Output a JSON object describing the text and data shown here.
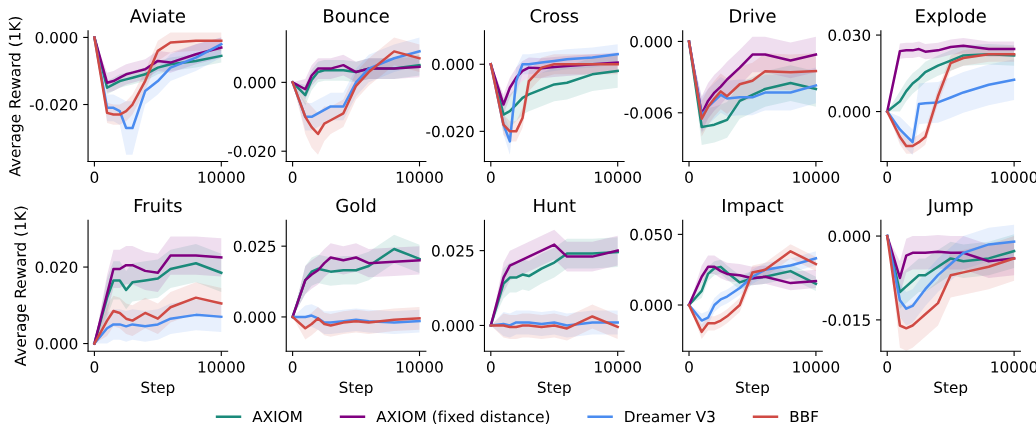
{
  "chart_data": [
    {
      "type": "line",
      "title": "Aviate",
      "ylabel": "Average Reward (1K)",
      "legend": "bottom",
      "xlim": [
        -500,
        10500
      ],
      "xticks": [
        0,
        10000
      ],
      "ylim": [
        -0.037,
        0.002
      ],
      "yticks": [
        {
          "value": 0,
          "label": "0.000"
        },
        {
          "value": -0.02,
          "label": "-0.020"
        }
      ],
      "x": [
        0,
        1000,
        1500,
        2000,
        2500,
        3000,
        4000,
        5000,
        6000,
        8000,
        10000
      ],
      "series": [
        {
          "name": "AXIOM",
          "color": "#1a8a7a",
          "values": [
            0,
            -0.015,
            -0.014,
            -0.013,
            -0.0125,
            -0.012,
            -0.011,
            -0.009,
            -0.008,
            -0.007,
            -0.0055
          ],
          "lower": [
            0,
            -0.017,
            -0.016,
            -0.015,
            -0.0145,
            -0.014,
            -0.013,
            -0.011,
            -0.01,
            -0.009,
            -0.0075
          ],
          "upper": [
            0,
            -0.013,
            -0.012,
            -0.011,
            -0.0105,
            -0.01,
            -0.009,
            -0.007,
            -0.006,
            -0.005,
            -0.0035
          ]
        },
        {
          "name": "AXIOM (fixed distance)",
          "color": "#800080",
          "values": [
            0,
            -0.0135,
            -0.013,
            -0.012,
            -0.011,
            -0.0105,
            -0.0095,
            -0.007,
            -0.0075,
            -0.005,
            -0.003
          ],
          "lower": [
            0,
            -0.0165,
            -0.016,
            -0.015,
            -0.014,
            -0.0135,
            -0.0125,
            -0.01,
            -0.0105,
            -0.008,
            -0.006
          ],
          "upper": [
            0,
            -0.0105,
            -0.01,
            -0.009,
            -0.008,
            -0.0075,
            -0.0065,
            -0.004,
            -0.0045,
            -0.002,
            0.0
          ]
        },
        {
          "name": "Dreamer V3",
          "color": "#4a8cf0",
          "values": [
            0,
            -0.021,
            -0.021,
            -0.022,
            -0.027,
            -0.027,
            -0.016,
            -0.013,
            -0.009,
            -0.006,
            -0.002
          ],
          "lower": [
            0,
            -0.025,
            -0.025,
            -0.026,
            -0.035,
            -0.035,
            -0.02,
            -0.017,
            -0.013,
            -0.01,
            -0.006
          ],
          "upper": [
            0,
            -0.017,
            -0.017,
            -0.018,
            -0.019,
            -0.019,
            -0.012,
            -0.009,
            -0.005,
            -0.002,
            0.0
          ]
        },
        {
          "name": "BBF",
          "color": "#d04a44",
          "values": [
            0,
            -0.0225,
            -0.023,
            -0.023,
            -0.022,
            -0.02,
            -0.013,
            -0.004,
            -0.0015,
            -0.001,
            -0.001
          ],
          "lower": [
            0,
            -0.0255,
            -0.026,
            -0.026,
            -0.025,
            -0.023,
            -0.016,
            -0.007,
            -0.0045,
            -0.004,
            -0.004
          ],
          "upper": [
            0,
            -0.0195,
            -0.02,
            -0.02,
            -0.019,
            -0.017,
            -0.01,
            -0.001,
            0.0015,
            0.0015,
            0.0015
          ]
        }
      ]
    },
    {
      "type": "line",
      "title": "Bounce",
      "xlim": [
        -500,
        10500
      ],
      "xticks": [
        0,
        10000
      ],
      "ylim": [
        -0.023,
        0.015
      ],
      "yticks": [
        {
          "value": 0,
          "label": "0.000"
        },
        {
          "value": -0.02,
          "label": "-0.020"
        }
      ],
      "x": [
        0,
        1000,
        1500,
        2000,
        2500,
        3000,
        4000,
        5000,
        6000,
        8000,
        10000
      ],
      "series": [
        {
          "name": "AXIOM",
          "color": "#1a8a7a",
          "values": [
            0,
            -0.0037,
            0.0007,
            0.003,
            0.0035,
            0.0035,
            0.0035,
            0.003,
            0.004,
            0.004,
            0.005
          ],
          "lower": [
            0,
            -0.0067,
            -0.0023,
            0.0,
            0.0005,
            0.0005,
            0.0005,
            0.0,
            0.001,
            0.001,
            0.002
          ],
          "upper": [
            0,
            -0.0007,
            0.0037,
            0.006,
            0.0065,
            0.0065,
            0.0065,
            0.006,
            0.007,
            0.007,
            0.008
          ]
        },
        {
          "name": "AXIOM (fixed distance)",
          "color": "#800080",
          "values": [
            0,
            -0.002,
            0.002,
            0.004,
            0.004,
            0.004,
            0.005,
            0.003,
            0.004,
            0.004,
            0.0045
          ],
          "lower": [
            0,
            -0.005,
            -0.001,
            0.001,
            0.001,
            0.001,
            0.002,
            0.0,
            0.001,
            0.001,
            0.0015
          ],
          "upper": [
            0,
            0.001,
            0.005,
            0.007,
            0.007,
            0.007,
            0.008,
            0.006,
            0.007,
            0.007,
            0.0075
          ]
        },
        {
          "name": "Dreamer V3",
          "color": "#4a8cf0",
          "values": [
            0,
            -0.01,
            -0.01,
            -0.009,
            -0.008,
            -0.007,
            -0.007,
            0.0,
            0.004,
            0.007,
            0.009
          ],
          "lower": [
            0,
            -0.014,
            -0.014,
            -0.013,
            -0.012,
            -0.011,
            -0.011,
            -0.004,
            0.0,
            0.003,
            0.005
          ],
          "upper": [
            0,
            -0.006,
            -0.006,
            -0.005,
            -0.004,
            -0.003,
            -0.003,
            0.004,
            0.008,
            0.011,
            0.013
          ]
        },
        {
          "name": "BBF",
          "color": "#d04a44",
          "values": [
            0,
            -0.01,
            -0.013,
            -0.015,
            -0.012,
            -0.011,
            -0.009,
            -0.001,
            0.003,
            0.009,
            0.007
          ],
          "lower": [
            0,
            -0.015,
            -0.019,
            -0.021,
            -0.017,
            -0.015,
            -0.013,
            -0.005,
            -0.001,
            0.005,
            0.003
          ],
          "upper": [
            0,
            -0.005,
            -0.007,
            -0.009,
            -0.007,
            -0.007,
            -0.005,
            0.003,
            0.007,
            0.013,
            0.011
          ]
        }
      ]
    },
    {
      "type": "line",
      "title": "Cross",
      "xlim": [
        -500,
        10500
      ],
      "xticks": [
        0,
        10000
      ],
      "ylim": [
        -0.029,
        0.01
      ],
      "yticks": [
        {
          "value": 0,
          "label": "0.000"
        },
        {
          "value": -0.02,
          "label": "-0.020"
        }
      ],
      "x": [
        0,
        1000,
        1500,
        2000,
        2500,
        3000,
        4000,
        5000,
        6000,
        8000,
        10000
      ],
      "series": [
        {
          "name": "AXIOM",
          "color": "#1a8a7a",
          "values": [
            0,
            -0.015,
            -0.014,
            -0.012,
            -0.01,
            -0.009,
            -0.0075,
            -0.006,
            -0.0055,
            -0.003,
            -0.002
          ],
          "lower": [
            0,
            -0.02,
            -0.019,
            -0.017,
            -0.015,
            -0.014,
            -0.0125,
            -0.011,
            -0.0105,
            -0.008,
            -0.007
          ],
          "upper": [
            0,
            -0.01,
            -0.009,
            -0.007,
            -0.005,
            -0.004,
            -0.0025,
            -0.001,
            -0.0005,
            0.002,
            0.003
          ]
        },
        {
          "name": "AXIOM (fixed distance)",
          "color": "#800080",
          "values": [
            0,
            -0.012,
            -0.007,
            -0.004,
            -0.002,
            -0.001,
            -0.0012,
            -0.0008,
            -0.0005,
            0.0,
            0.0005
          ],
          "lower": [
            0,
            -0.015,
            -0.01,
            -0.007,
            -0.005,
            -0.004,
            -0.0042,
            -0.0038,
            -0.0035,
            -0.003,
            -0.0025
          ],
          "upper": [
            0,
            -0.009,
            -0.004,
            -0.001,
            0.001,
            0.002,
            0.0018,
            0.0022,
            0.0025,
            0.003,
            0.0035
          ]
        },
        {
          "name": "Dreamer V3",
          "color": "#4a8cf0",
          "values": [
            0,
            -0.018,
            -0.023,
            -0.005,
            0.0,
            0.0,
            0.0005,
            0.001,
            0.0015,
            0.002,
            0.003
          ],
          "lower": [
            0,
            -0.021,
            -0.027,
            -0.009,
            -0.003,
            -0.003,
            -0.0025,
            -0.002,
            -0.0015,
            -0.001,
            0.0
          ],
          "upper": [
            0,
            -0.015,
            -0.019,
            -0.001,
            0.003,
            0.003,
            0.0035,
            0.004,
            0.0045,
            0.005,
            0.006
          ]
        },
        {
          "name": "BBF",
          "color": "#d04a44",
          "values": [
            0,
            -0.018,
            -0.02,
            -0.02,
            -0.016,
            -0.005,
            -0.001,
            0.0,
            0.0,
            0.0,
            0.0
          ],
          "lower": [
            0,
            -0.021,
            -0.023,
            -0.023,
            -0.019,
            -0.008,
            -0.004,
            -0.003,
            -0.003,
            -0.003,
            -0.003
          ],
          "upper": [
            0,
            -0.015,
            -0.017,
            -0.017,
            -0.013,
            -0.002,
            0.002,
            0.003,
            0.003,
            0.003,
            0.003
          ]
        }
      ]
    },
    {
      "type": "line",
      "title": "Drive",
      "xlim": [
        -500,
        10500
      ],
      "xticks": [
        0,
        10000
      ],
      "ylim": [
        -0.0101,
        0.0009
      ],
      "yticks": [
        {
          "value": 0,
          "label": "0.000"
        },
        {
          "value": -0.006,
          "label": "-0.006"
        }
      ],
      "x": [
        0,
        1000,
        1500,
        2000,
        2500,
        3000,
        4000,
        5000,
        6000,
        8000,
        10000
      ],
      "series": [
        {
          "name": "AXIOM",
          "color": "#1a8a7a",
          "values": [
            0,
            -0.0072,
            -0.0071,
            -0.007,
            -0.0068,
            -0.0066,
            -0.005,
            -0.0045,
            -0.004,
            -0.0035,
            -0.004
          ],
          "lower": [
            0,
            -0.0087,
            -0.0086,
            -0.0085,
            -0.0083,
            -0.0081,
            -0.0065,
            -0.006,
            -0.0055,
            -0.005,
            -0.0055
          ],
          "upper": [
            0,
            -0.0057,
            -0.0056,
            -0.0055,
            -0.0053,
            -0.0051,
            -0.0035,
            -0.003,
            -0.0025,
            -0.002,
            -0.0025
          ]
        },
        {
          "name": "AXIOM (fixed distance)",
          "color": "#800080",
          "values": [
            0,
            -0.0061,
            -0.005,
            -0.0043,
            -0.0038,
            -0.0032,
            -0.0022,
            -0.0011,
            -0.0011,
            -0.0016,
            -0.0011
          ],
          "lower": [
            0,
            -0.0076,
            -0.0065,
            -0.0058,
            -0.0053,
            -0.0047,
            -0.0037,
            -0.0026,
            -0.0026,
            -0.0031,
            -0.0026
          ],
          "upper": [
            0,
            -0.0046,
            -0.0035,
            -0.0028,
            -0.0023,
            -0.0017,
            -0.0007,
            0.0004,
            0.0004,
            -0.0001,
            0.0004
          ]
        },
        {
          "name": "Dreamer V3",
          "color": "#4a8cf0",
          "values": [
            0,
            -0.0062,
            -0.0055,
            -0.005,
            -0.0045,
            -0.0048,
            -0.0047,
            -0.0047,
            -0.0043,
            -0.0043,
            -0.0037
          ],
          "lower": [
            0,
            -0.0077,
            -0.007,
            -0.0065,
            -0.006,
            -0.0063,
            -0.0062,
            -0.0062,
            -0.0058,
            -0.0058,
            -0.0052
          ],
          "upper": [
            0,
            -0.0047,
            -0.004,
            -0.0035,
            -0.003,
            -0.0033,
            -0.0032,
            -0.0032,
            -0.0028,
            -0.0028,
            -0.0022
          ]
        },
        {
          "name": "BBF",
          "color": "#d04a44",
          "values": [
            0,
            -0.0065,
            -0.0055,
            -0.0048,
            -0.0042,
            -0.0046,
            -0.0036,
            -0.0033,
            -0.0025,
            -0.0026,
            -0.0025
          ],
          "lower": [
            0,
            -0.008,
            -0.007,
            -0.0063,
            -0.0057,
            -0.0061,
            -0.0051,
            -0.0048,
            -0.004,
            -0.0041,
            -0.004
          ],
          "upper": [
            0,
            -0.005,
            -0.004,
            -0.0033,
            -0.0027,
            -0.0031,
            -0.0021,
            -0.0018,
            -0.001,
            -0.0011,
            -0.001
          ]
        }
      ]
    },
    {
      "type": "line",
      "title": "Explode",
      "xlim": [
        -500,
        10500
      ],
      "xticks": [
        0,
        10000
      ],
      "ylim": [
        -0.0196,
        0.0317
      ],
      "yticks": [
        {
          "value": 0.03,
          "label": "0.030"
        },
        {
          "value": 0,
          "label": "0.000"
        }
      ],
      "x": [
        0,
        1000,
        1500,
        2000,
        2500,
        3000,
        4000,
        5000,
        6000,
        8000,
        10000
      ],
      "series": [
        {
          "name": "AXIOM",
          "color": "#1a8a7a",
          "values": [
            0,
            0.004,
            0.008,
            0.011,
            0.013,
            0.0155,
            0.018,
            0.02,
            0.022,
            0.0225,
            0.022
          ],
          "lower": [
            0,
            0.0,
            0.004,
            0.007,
            0.009,
            0.0115,
            0.014,
            0.016,
            0.018,
            0.0185,
            0.018
          ],
          "upper": [
            0,
            0.008,
            0.012,
            0.015,
            0.017,
            0.0195,
            0.022,
            0.024,
            0.026,
            0.0265,
            0.026
          ]
        },
        {
          "name": "AXIOM (fixed distance)",
          "color": "#800080",
          "values": [
            0,
            0.0237,
            0.024,
            0.024,
            0.0245,
            0.0235,
            0.024,
            0.0253,
            0.0258,
            0.0245,
            0.0245
          ],
          "lower": [
            0,
            0.0207,
            0.021,
            0.021,
            0.0215,
            0.0205,
            0.021,
            0.0223,
            0.0228,
            0.0215,
            0.0215
          ],
          "upper": [
            0,
            0.0267,
            0.027,
            0.027,
            0.0275,
            0.0265,
            0.027,
            0.0283,
            0.0288,
            0.0275,
            0.0275
          ]
        },
        {
          "name": "Dreamer V3",
          "color": "#4a8cf0",
          "values": [
            0,
            -0.007,
            -0.0095,
            -0.012,
            0.003,
            0.0033,
            0.0036,
            0.0055,
            0.0075,
            0.0105,
            0.0125
          ],
          "lower": [
            0,
            -0.012,
            -0.0145,
            -0.017,
            -0.005,
            -0.0047,
            -0.0044,
            -0.0025,
            -0.0005,
            0.0025,
            0.0045
          ],
          "upper": [
            0,
            -0.002,
            -0.0045,
            -0.007,
            0.011,
            0.0113,
            0.0116,
            0.0135,
            0.0155,
            0.0185,
            0.0205
          ]
        },
        {
          "name": "BBF",
          "color": "#d04a44",
          "values": [
            0,
            -0.01,
            -0.0135,
            -0.0135,
            -0.012,
            -0.01,
            0.006,
            0.019,
            0.021,
            0.0225,
            0.0225
          ],
          "lower": [
            0,
            -0.013,
            -0.0165,
            -0.0165,
            -0.015,
            -0.013,
            0.003,
            0.016,
            0.018,
            0.0195,
            0.0195
          ],
          "upper": [
            0,
            -0.007,
            -0.0105,
            -0.0105,
            -0.009,
            -0.007,
            0.009,
            0.022,
            0.024,
            0.0255,
            0.0255
          ]
        }
      ]
    },
    {
      "type": "line",
      "title": "Fruits",
      "ylabel": "Average Reward (1K)",
      "xlabel": "Step",
      "xlim": [
        -500,
        10500
      ],
      "xticks": [
        0,
        10000
      ],
      "ylim": [
        -0.002,
        0.0322
      ],
      "yticks": [
        {
          "value": 0.02,
          "label": "0.020"
        },
        {
          "value": 0,
          "label": "0.000"
        }
      ],
      "x": [
        0,
        1000,
        1500,
        2000,
        2500,
        3000,
        4000,
        5000,
        6000,
        8000,
        10000
      ],
      "series": [
        {
          "name": "AXIOM",
          "color": "#1a8a7a",
          "values": [
            0,
            0.012,
            0.0165,
            0.0165,
            0.014,
            0.016,
            0.0165,
            0.017,
            0.0195,
            0.021,
            0.0185
          ],
          "lower": [
            0,
            0.007,
            0.0115,
            0.0115,
            0.009,
            0.011,
            0.0115,
            0.012,
            0.0145,
            0.016,
            0.0135
          ],
          "upper": [
            0,
            0.017,
            0.0215,
            0.0215,
            0.019,
            0.021,
            0.0215,
            0.022,
            0.0245,
            0.026,
            0.0235
          ]
        },
        {
          "name": "AXIOM (fixed distance)",
          "color": "#800080",
          "values": [
            0,
            0.013,
            0.0195,
            0.0195,
            0.0205,
            0.0205,
            0.019,
            0.0185,
            0.023,
            0.023,
            0.0225
          ],
          "lower": [
            0,
            0.008,
            0.0145,
            0.0145,
            0.0155,
            0.0155,
            0.014,
            0.0135,
            0.018,
            0.018,
            0.0175
          ],
          "upper": [
            0,
            0.018,
            0.0245,
            0.0245,
            0.0255,
            0.0255,
            0.024,
            0.0235,
            0.028,
            0.028,
            0.0275
          ]
        },
        {
          "name": "Dreamer V3",
          "color": "#4a8cf0",
          "values": [
            0,
            0.004,
            0.005,
            0.005,
            0.0045,
            0.005,
            0.0045,
            0.005,
            0.0065,
            0.0075,
            0.007
          ],
          "lower": [
            0,
            0.0,
            0.001,
            0.001,
            0.0005,
            0.001,
            0.0005,
            0.001,
            0.0025,
            0.0035,
            0.003
          ],
          "upper": [
            0,
            0.008,
            0.009,
            0.009,
            0.0085,
            0.009,
            0.0085,
            0.009,
            0.0105,
            0.0115,
            0.011
          ]
        },
        {
          "name": "BBF",
          "color": "#d04a44",
          "values": [
            0,
            0.006,
            0.0085,
            0.008,
            0.0065,
            0.006,
            0.008,
            0.0065,
            0.0095,
            0.012,
            0.0105
          ],
          "lower": [
            0,
            0.002,
            0.0045,
            0.004,
            0.0025,
            0.002,
            0.004,
            0.0025,
            0.0055,
            0.008,
            0.0065
          ],
          "upper": [
            0,
            0.01,
            0.0125,
            0.012,
            0.0105,
            0.01,
            0.012,
            0.0105,
            0.0135,
            0.016,
            0.0145
          ]
        }
      ]
    },
    {
      "type": "line",
      "title": "Gold",
      "xlabel": "Step",
      "xlim": [
        -500,
        10500
      ],
      "xticks": [
        0,
        10000
      ],
      "ylim": [
        -0.0121,
        0.0341
      ],
      "yticks": [
        {
          "value": 0.025,
          "label": "0.025"
        },
        {
          "value": 0,
          "label": "0.000"
        }
      ],
      "x": [
        0,
        1000,
        1500,
        2000,
        2500,
        3000,
        4000,
        5000,
        6000,
        8000,
        10000
      ],
      "series": [
        {
          "name": "AXIOM",
          "color": "#1a8a7a",
          "values": [
            0,
            0.013,
            0.016,
            0.017,
            0.0165,
            0.016,
            0.0165,
            0.0165,
            0.018,
            0.024,
            0.0205
          ],
          "lower": [
            0,
            0.008,
            0.011,
            0.012,
            0.0115,
            0.011,
            0.0115,
            0.0115,
            0.013,
            0.019,
            0.0155
          ],
          "upper": [
            0,
            0.018,
            0.021,
            0.022,
            0.0215,
            0.021,
            0.0215,
            0.0215,
            0.023,
            0.029,
            0.0255
          ]
        },
        {
          "name": "AXIOM (fixed distance)",
          "color": "#800080",
          "values": [
            0,
            0.013,
            0.015,
            0.0165,
            0.019,
            0.021,
            0.02,
            0.021,
            0.019,
            0.0195,
            0.02
          ],
          "lower": [
            0,
            0.008,
            0.01,
            0.0115,
            0.014,
            0.016,
            0.015,
            0.016,
            0.014,
            0.0145,
            0.015
          ],
          "upper": [
            0,
            0.018,
            0.02,
            0.0215,
            0.024,
            0.026,
            0.025,
            0.026,
            0.024,
            0.0245,
            0.025
          ]
        },
        {
          "name": "Dreamer V3",
          "color": "#4a8cf0",
          "values": [
            0,
            0.0,
            0.0005,
            -0.0005,
            -0.002,
            -0.002,
            -0.0015,
            -0.001,
            -0.0015,
            -0.002,
            -0.0015
          ],
          "lower": [
            0,
            -0.004,
            -0.0035,
            -0.0045,
            -0.006,
            -0.006,
            -0.0055,
            -0.005,
            -0.0055,
            -0.006,
            -0.0055
          ],
          "upper": [
            0,
            0.004,
            0.0045,
            0.0035,
            0.002,
            0.002,
            0.0025,
            0.003,
            0.0025,
            0.002,
            0.0025
          ]
        },
        {
          "name": "BBF",
          "color": "#d04a44",
          "values": [
            0,
            -0.004,
            -0.0025,
            -0.0005,
            -0.0025,
            -0.003,
            -0.002,
            -0.0015,
            -0.002,
            -0.001,
            -0.0005
          ],
          "lower": [
            0,
            -0.008,
            -0.0065,
            -0.0045,
            -0.0065,
            -0.007,
            -0.006,
            -0.0055,
            -0.006,
            -0.005,
            -0.0045
          ],
          "upper": [
            0,
            0.0,
            0.0015,
            0.0035,
            0.0015,
            0.001,
            0.002,
            0.0025,
            0.002,
            0.003,
            0.0035
          ]
        }
      ]
    },
    {
      "type": "line",
      "title": "Hunt",
      "xlabel": "Step",
      "xlim": [
        -500,
        10500
      ],
      "xticks": [
        0,
        10000
      ],
      "ylim": [
        -0.0086,
        0.0351
      ],
      "yticks": [
        {
          "value": 0.025,
          "label": "0.025"
        },
        {
          "value": 0,
          "label": "0.000"
        }
      ],
      "x": [
        0,
        1000,
        1500,
        2000,
        2500,
        3000,
        4000,
        5000,
        6000,
        8000,
        10000
      ],
      "series": [
        {
          "name": "AXIOM",
          "color": "#1a8a7a",
          "values": [
            0,
            0.014,
            0.016,
            0.016,
            0.017,
            0.0165,
            0.019,
            0.021,
            0.024,
            0.024,
            0.0245
          ],
          "lower": [
            0,
            0.009,
            0.011,
            0.011,
            0.012,
            0.0115,
            0.014,
            0.016,
            0.019,
            0.019,
            0.0195
          ],
          "upper": [
            0,
            0.019,
            0.021,
            0.021,
            0.022,
            0.0215,
            0.024,
            0.026,
            0.029,
            0.029,
            0.0295
          ]
        },
        {
          "name": "AXIOM (fixed distance)",
          "color": "#800080",
          "values": [
            0,
            0.016,
            0.02,
            0.021,
            0.022,
            0.023,
            0.025,
            0.027,
            0.023,
            0.023,
            0.025
          ],
          "lower": [
            0,
            0.011,
            0.015,
            0.016,
            0.017,
            0.018,
            0.02,
            0.022,
            0.018,
            0.018,
            0.02
          ],
          "upper": [
            0,
            0.021,
            0.025,
            0.026,
            0.027,
            0.028,
            0.03,
            0.032,
            0.028,
            0.028,
            0.03
          ]
        },
        {
          "name": "Dreamer V3",
          "color": "#4a8cf0",
          "values": [
            0,
            0.0005,
            0.0,
            0.001,
            0.001,
            0.001,
            0.0005,
            0.001,
            0.0,
            0.001,
            0.001
          ],
          "lower": [
            0,
            -0.0035,
            -0.004,
            -0.003,
            -0.003,
            -0.003,
            -0.0035,
            -0.003,
            -0.004,
            -0.003,
            -0.003
          ],
          "upper": [
            0,
            0.0045,
            0.004,
            0.005,
            0.005,
            0.005,
            0.0045,
            0.005,
            0.004,
            0.005,
            0.005
          ]
        },
        {
          "name": "BBF",
          "color": "#d04a44",
          "values": [
            0,
            0.0,
            -0.0005,
            -0.0005,
            0.0,
            0.0,
            -0.0005,
            0.0,
            -0.001,
            0.003,
            -0.0005
          ],
          "lower": [
            0,
            -0.004,
            -0.0045,
            -0.0045,
            -0.004,
            -0.004,
            -0.0045,
            -0.004,
            -0.005,
            -0.001,
            -0.0045
          ],
          "upper": [
            0,
            0.004,
            0.0035,
            0.0035,
            0.004,
            0.004,
            0.0035,
            0.004,
            0.003,
            0.007,
            0.0035
          ]
        }
      ]
    },
    {
      "type": "line",
      "title": "Impact",
      "xlabel": "Step",
      "xlim": [
        -500,
        10500
      ],
      "xticks": [
        0,
        10000
      ],
      "ylim": [
        -0.0327,
        0.0599
      ],
      "yticks": [
        {
          "value": 0.05,
          "label": "0.050"
        },
        {
          "value": 0,
          "label": "0.000"
        }
      ],
      "x": [
        0,
        1000,
        1500,
        2000,
        2500,
        3000,
        4000,
        5000,
        6000,
        8000,
        10000
      ],
      "series": [
        {
          "name": "AXIOM",
          "color": "#1a8a7a",
          "values": [
            0,
            0.01,
            0.022,
            0.026,
            0.027,
            0.023,
            0.016,
            0.019,
            0.02,
            0.024,
            0.015
          ],
          "lower": [
            0,
            0.005,
            0.017,
            0.021,
            0.022,
            0.018,
            0.011,
            0.014,
            0.015,
            0.019,
            0.01
          ],
          "upper": [
            0,
            0.015,
            0.027,
            0.031,
            0.032,
            0.028,
            0.021,
            0.024,
            0.025,
            0.029,
            0.02
          ]
        },
        {
          "name": "AXIOM (fixed distance)",
          "color": "#800080",
          "values": [
            0,
            0.02,
            0.027,
            0.027,
            0.024,
            0.022,
            0.021,
            0.019,
            0.02,
            0.0155,
            0.017
          ],
          "lower": [
            0,
            0.015,
            0.022,
            0.022,
            0.019,
            0.017,
            0.016,
            0.014,
            0.015,
            0.0105,
            0.012
          ],
          "upper": [
            0,
            0.028,
            0.035,
            0.035,
            0.032,
            0.03,
            0.029,
            0.027,
            0.028,
            0.0235,
            0.025
          ]
        },
        {
          "name": "Dreamer V3",
          "color": "#4a8cf0",
          "values": [
            0,
            -0.011,
            -0.009,
            0.0,
            0.004,
            0.006,
            0.012,
            0.02,
            0.025,
            0.028,
            0.033
          ],
          "lower": [
            0,
            -0.016,
            -0.014,
            -0.005,
            -0.001,
            0.001,
            0.007,
            0.015,
            0.02,
            0.023,
            0.028
          ],
          "upper": [
            0,
            -0.006,
            -0.004,
            0.005,
            0.009,
            0.011,
            0.017,
            0.025,
            0.03,
            0.033,
            0.038
          ]
        },
        {
          "name": "BBF",
          "color": "#d04a44",
          "values": [
            0,
            -0.019,
            -0.013,
            -0.013,
            -0.011,
            -0.008,
            0.0,
            0.023,
            0.025,
            0.038,
            0.029
          ],
          "lower": [
            0,
            -0.024,
            -0.018,
            -0.018,
            -0.016,
            -0.013,
            -0.005,
            0.018,
            0.02,
            0.033,
            0.024
          ],
          "upper": [
            0,
            -0.014,
            -0.008,
            -0.008,
            -0.006,
            -0.003,
            0.005,
            0.028,
            0.03,
            0.043,
            0.034
          ]
        }
      ]
    },
    {
      "type": "line",
      "title": "Jump",
      "xlabel": "Step",
      "xlim": [
        -500,
        10500
      ],
      "xticks": [
        0,
        10000
      ],
      "ylim": [
        -0.0206,
        0.0028
      ],
      "yticks": [
        {
          "value": 0,
          "label": "0.000"
        },
        {
          "value": -0.015,
          "label": "-0.015"
        }
      ],
      "x": [
        0,
        1000,
        1500,
        2000,
        2500,
        3000,
        4000,
        5000,
        6000,
        8000,
        10000
      ],
      "series": [
        {
          "name": "AXIOM",
          "color": "#1a8a7a",
          "values": [
            0,
            -0.01,
            -0.009,
            -0.008,
            -0.007,
            -0.007,
            -0.0055,
            -0.004,
            -0.0045,
            -0.004,
            -0.0027
          ],
          "lower": [
            0,
            -0.013,
            -0.012,
            -0.011,
            -0.01,
            -0.01,
            -0.0085,
            -0.007,
            -0.0075,
            -0.007,
            -0.0057
          ],
          "upper": [
            0,
            -0.007,
            -0.006,
            -0.005,
            -0.004,
            -0.004,
            -0.0025,
            -0.001,
            -0.0015,
            -0.001,
            0.0003
          ]
        },
        {
          "name": "AXIOM (fixed distance)",
          "color": "#800080",
          "values": [
            0,
            -0.0075,
            -0.0035,
            -0.003,
            -0.003,
            -0.003,
            -0.0028,
            -0.003,
            -0.003,
            -0.0045,
            -0.004
          ],
          "lower": [
            0,
            -0.0105,
            -0.0065,
            -0.006,
            -0.006,
            -0.006,
            -0.0058,
            -0.006,
            -0.006,
            -0.0075,
            -0.007
          ],
          "upper": [
            0,
            -0.0045,
            -0.0005,
            0.0,
            0.0,
            0.0,
            0.0002,
            0.0,
            0.0,
            -0.0015,
            -0.001
          ]
        },
        {
          "name": "Dreamer V3",
          "color": "#4a8cf0",
          "values": [
            0,
            -0.0115,
            -0.013,
            -0.0125,
            -0.011,
            -0.0095,
            -0.007,
            -0.005,
            -0.003,
            -0.0015,
            -0.001
          ],
          "lower": [
            0,
            -0.0145,
            -0.016,
            -0.0155,
            -0.014,
            -0.0125,
            -0.01,
            -0.008,
            -0.006,
            -0.0045,
            -0.004
          ],
          "upper": [
            0,
            -0.0085,
            -0.01,
            -0.0095,
            -0.008,
            -0.0065,
            -0.004,
            -0.002,
            0.0,
            0.0015,
            0.002
          ]
        },
        {
          "name": "BBF",
          "color": "#d04a44",
          "values": [
            0,
            -0.016,
            -0.0165,
            -0.016,
            -0.015,
            -0.014,
            -0.012,
            -0.007,
            -0.0065,
            -0.0055,
            -0.004
          ],
          "lower": [
            0,
            -0.02,
            -0.0205,
            -0.02,
            -0.019,
            -0.018,
            -0.016,
            -0.011,
            -0.0105,
            -0.0095,
            -0.008
          ],
          "upper": [
            0,
            -0.012,
            -0.0125,
            -0.012,
            -0.011,
            -0.01,
            -0.008,
            -0.003,
            -0.0025,
            -0.0015,
            0.0
          ]
        }
      ]
    }
  ]
}
